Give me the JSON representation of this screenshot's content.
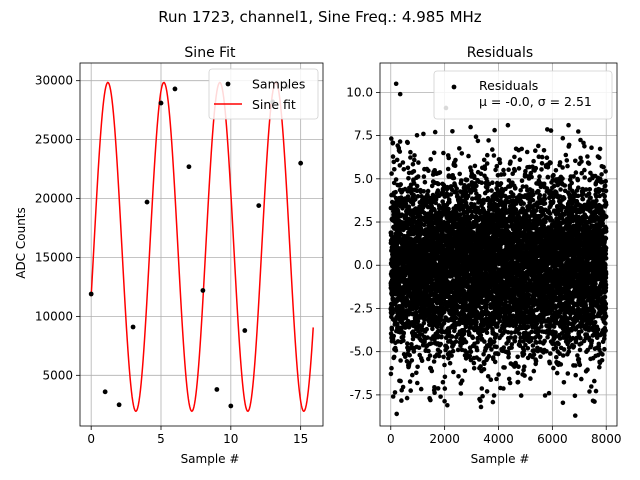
{
  "suptitle": "Run 1723, channel1, Sine Freq.: 4.985 MHz",
  "chart_data": [
    {
      "type": "scatter",
      "title": "Sine Fit",
      "xlabel": "Sample #",
      "ylabel": "ADC Counts",
      "xlim": [
        -0.8,
        16.6
      ],
      "ylim": [
        700,
        31500
      ],
      "xticks": [
        0,
        5,
        10,
        15
      ],
      "yticks": [
        5000,
        10000,
        15000,
        20000,
        25000,
        30000
      ],
      "grid": true,
      "legend_position": "top-right",
      "series": [
        {
          "name": "Samples",
          "kind": "scatter",
          "color": "#000000",
          "x": [
            0,
            1,
            2,
            3,
            4,
            5,
            6,
            7,
            8,
            9,
            10,
            11,
            12,
            13,
            14,
            15
          ],
          "y": [
            11900,
            3600,
            2500,
            9100,
            19700,
            28100,
            29300,
            22700,
            12200,
            3800,
            2400,
            8800,
            19400,
            28200,
            29500,
            23000
          ]
        },
        {
          "name": "Sine fit",
          "kind": "line",
          "color": "#ff0000",
          "fit": {
            "amplitude": 13950,
            "offset": 15900,
            "frequency": 0.2495,
            "phase": -0.305,
            "x_start": 0,
            "x_end": 15.9
          }
        }
      ]
    },
    {
      "type": "scatter",
      "title": "Residuals",
      "xlabel": "Sample #",
      "xlim": [
        -400,
        8400
      ],
      "ylim": [
        -9.3,
        11.7
      ],
      "xticks": [
        0,
        2000,
        4000,
        6000,
        8000
      ],
      "yticks": [
        -7.5,
        -5.0,
        -2.5,
        0.0,
        2.5,
        5.0,
        7.5,
        10.0
      ],
      "grid": true,
      "legend_position": "top-right",
      "series": [
        {
          "name": "Residuals",
          "kind": "scatter",
          "color": "#000000",
          "n_points": 8000,
          "mean": -0.0,
          "sigma": 2.51,
          "x_range": [
            0,
            8000
          ],
          "outliers": [
            {
              "x": 200,
              "y": 10.5
            },
            {
              "x": 350,
              "y": 9.9
            },
            {
              "x": 2050,
              "y": 9.1
            },
            {
              "x": 220,
              "y": -8.6
            },
            {
              "x": 6850,
              "y": -8.7
            },
            {
              "x": 3350,
              "y": -8.2
            },
            {
              "x": 1850,
              "y": -7.6
            },
            {
              "x": 2100,
              "y": -8.1
            },
            {
              "x": 6600,
              "y": 8.1
            },
            {
              "x": 4350,
              "y": 8.1
            }
          ]
        }
      ],
      "legend_stats": {
        "mu_prefix": "μ = ",
        "mu_value": "-0.0",
        "sigma_prefix": ", σ = ",
        "sigma_value": "2.51"
      }
    }
  ]
}
